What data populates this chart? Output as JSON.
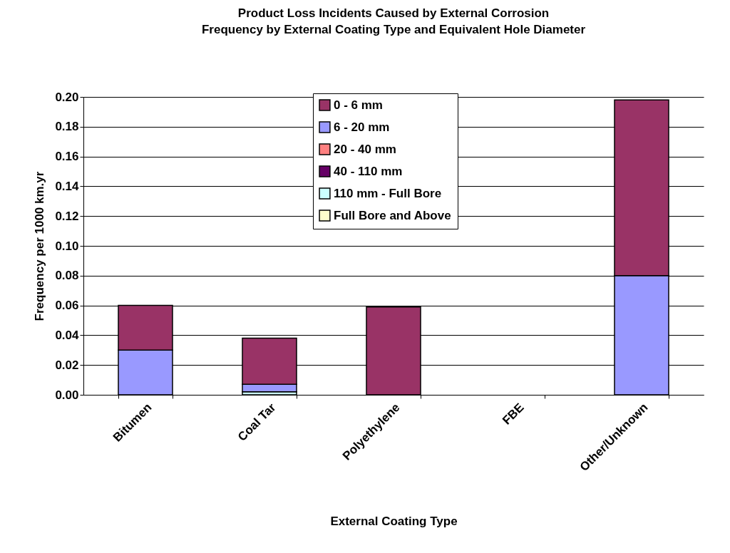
{
  "chart_data": {
    "type": "bar",
    "title": "Product Loss Incidents Caused by External Corrosion",
    "subtitle": "Frequency by External Coating Type and Equivalent Hole Diameter",
    "xlabel": "External Coating Type",
    "ylabel": "Frequency per 1000 km.yr",
    "categories": [
      "Bitumen",
      "Coal Tar",
      "Polyethylene",
      "FBE",
      "Other/Unknown"
    ],
    "stacked": true,
    "ylim": [
      0,
      0.2
    ],
    "yticks": [
      {
        "value": 0,
        "label": "0.00"
      },
      {
        "value": 0.02,
        "label": "0.02"
      },
      {
        "value": 0.04,
        "label": "0.04"
      },
      {
        "value": 0.06,
        "label": "0.06"
      },
      {
        "value": 0.08,
        "label": "0.08"
      },
      {
        "value": 0.1,
        "label": "0.10"
      },
      {
        "value": 0.12,
        "label": "0.12"
      },
      {
        "value": 0.14,
        "label": "0.14"
      },
      {
        "value": 0.16,
        "label": "0.16"
      },
      {
        "value": 0.18,
        "label": "0.18"
      },
      {
        "value": 0.2,
        "label": "0.20"
      }
    ],
    "grid": "y",
    "legend": "top",
    "series": [
      {
        "name": "110 mm - Full Bore",
        "color": "#ccffff",
        "values": [
          0,
          0.002,
          0,
          0,
          0
        ]
      },
      {
        "name": "6 - 20 mm",
        "color": "#9999ff",
        "values": [
          0.03,
          0.005,
          0,
          0,
          0.08
        ]
      },
      {
        "name": "0 - 6 mm",
        "color": "#993366",
        "values": [
          0.03,
          0.031,
          0.059,
          0,
          0.118
        ]
      },
      {
        "name": "20 - 40 mm",
        "color": "#ff8080",
        "values": [
          0,
          0,
          0,
          0,
          0
        ]
      },
      {
        "name": "40 - 110 mm",
        "color": "#660066",
        "values": [
          0,
          0,
          0,
          0,
          0
        ]
      },
      {
        "name": "Full Bore and Above",
        "color": "#ffffcc",
        "values": [
          0,
          0,
          0,
          0,
          0
        ]
      }
    ]
  }
}
